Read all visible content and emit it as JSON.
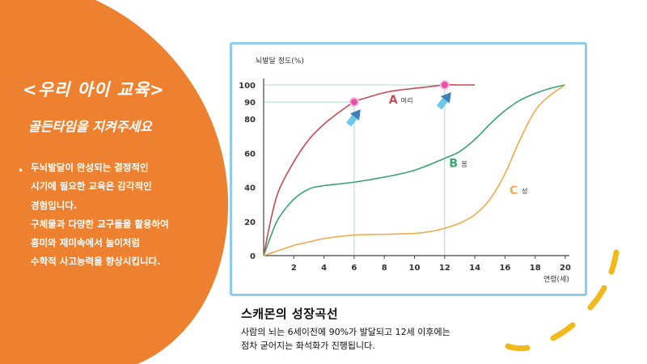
{
  "left_panel": {
    "title": "<우리 아이 교육>",
    "subtitle": "골든타임을 지켜주세요",
    "bullet_lines": [
      "두뇌발달이 완성되는 결정적인",
      "시기에 필요한 교육은 감각적인",
      "경험입니다.",
      "구체물과 다양한 교구들을 활용하여",
      "흥미와 재미속에서 놀이처럼",
      "수학적 사고능력을 향상시킵니다."
    ]
  },
  "caption": {
    "title": "스캐몬의 성장곡선",
    "line1": "사람의 뇌는 6세이전에 90%가 발달되고 12세 이후에는",
    "line2": "점차 굳어지는 화석화가 진행됩니다."
  },
  "colors": {
    "orange": "#ee8130",
    "frame_blue": "#8fcdee",
    "dash_yellow": "#f2b91c",
    "curve_red": "#c94a52",
    "curve_green": "#3aa36f",
    "curve_tan": "#f0aa50",
    "marker_pink": "#e44fa8"
  },
  "chart_data": {
    "type": "line",
    "ylabel": "뇌발달 정도(%)",
    "xlabel": "연령(세)",
    "x_ticks": [
      2,
      4,
      6,
      8,
      10,
      12,
      14,
      16,
      18,
      20
    ],
    "y_ticks": [
      0,
      20,
      40,
      60,
      80,
      90,
      100
    ],
    "xlim": [
      0,
      20
    ],
    "ylim": [
      0,
      100
    ],
    "series": [
      {
        "name": "머리",
        "letter": "A",
        "color": "#c94a52",
        "points": [
          [
            0,
            0
          ],
          [
            0.5,
            22
          ],
          [
            1,
            38
          ],
          [
            2,
            55
          ],
          [
            3,
            68
          ],
          [
            4,
            77
          ],
          [
            5,
            84
          ],
          [
            6,
            90
          ],
          [
            7,
            93
          ],
          [
            8,
            95.5
          ],
          [
            9,
            97
          ],
          [
            10,
            98
          ],
          [
            11,
            99
          ],
          [
            12,
            100
          ],
          [
            13,
            100
          ],
          [
            14,
            100
          ]
        ]
      },
      {
        "name": "몸",
        "letter": "B",
        "color": "#3aa36f",
        "points": [
          [
            0,
            0
          ],
          [
            0.5,
            12
          ],
          [
            1,
            22
          ],
          [
            2,
            33
          ],
          [
            3,
            39
          ],
          [
            4,
            41
          ],
          [
            6,
            43
          ],
          [
            8,
            46
          ],
          [
            10,
            50
          ],
          [
            12,
            57
          ],
          [
            13,
            61
          ],
          [
            14,
            68
          ],
          [
            15,
            77
          ],
          [
            16,
            85
          ],
          [
            17,
            91
          ],
          [
            18,
            95
          ],
          [
            19,
            98
          ],
          [
            20,
            100
          ]
        ]
      },
      {
        "name": "성",
        "letter": "C",
        "color": "#f0aa50",
        "points": [
          [
            0,
            0
          ],
          [
            1,
            3
          ],
          [
            2,
            6
          ],
          [
            3,
            8
          ],
          [
            4,
            10
          ],
          [
            6,
            12
          ],
          [
            8,
            12.5
          ],
          [
            10,
            13
          ],
          [
            11,
            14
          ],
          [
            12,
            16
          ],
          [
            13,
            19
          ],
          [
            14,
            24
          ],
          [
            15,
            33
          ],
          [
            16,
            48
          ],
          [
            17,
            68
          ],
          [
            18,
            85
          ],
          [
            19,
            94
          ],
          [
            20,
            100
          ]
        ]
      }
    ],
    "markers": [
      {
        "x": 6,
        "y": 90
      },
      {
        "x": 12,
        "y": 100
      }
    ],
    "grid": "guide lines at 90% and 100% only",
    "legend": "inline labels next to each curve"
  }
}
